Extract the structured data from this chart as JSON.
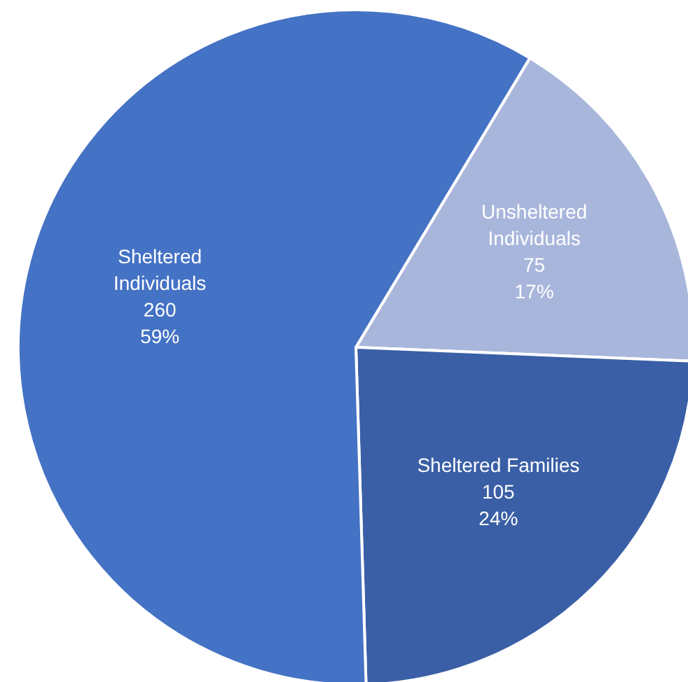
{
  "chart_data": {
    "type": "pie",
    "categories": [
      "Unsheltered Individuals",
      "Sheltered Families",
      "Sheltered Individuals"
    ],
    "values": [
      75,
      105,
      260
    ],
    "colors": [
      "#a9b6dc",
      "#3a5fa6",
      "#4472c4"
    ],
    "value_labels": [
      "75\n17%",
      "105\n24%",
      "260\n59%"
    ]
  }
}
